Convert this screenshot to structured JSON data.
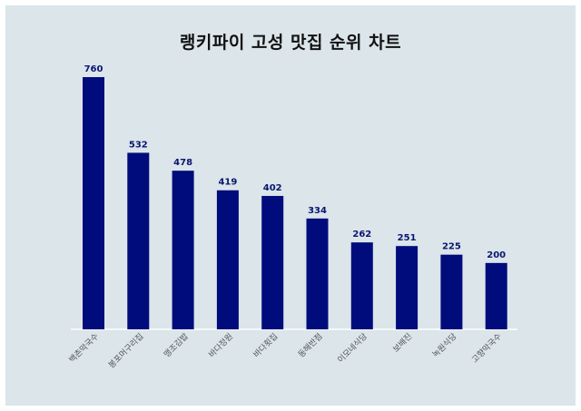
{
  "chart_data": {
    "type": "bar",
    "title": "랭키파이 고성 맛집 순위 차트",
    "categories": [
      "백촌막국수",
      "봉포머구리집",
      "맹조김밥",
      "바다정원",
      "바다횟집",
      "동해반점",
      "이모네식당",
      "보배진",
      "녹원식당",
      "고향막국수"
    ],
    "values": [
      760,
      532,
      478,
      419,
      402,
      334,
      262,
      251,
      225,
      200
    ],
    "xlabel": "",
    "ylabel": "",
    "ylim": [
      0,
      760
    ],
    "grid": false,
    "legend": "none",
    "colors": {
      "bar": "#000c7c",
      "label": "#0a1670",
      "background": "#dbe5ea",
      "axis": "#ffffff"
    }
  }
}
